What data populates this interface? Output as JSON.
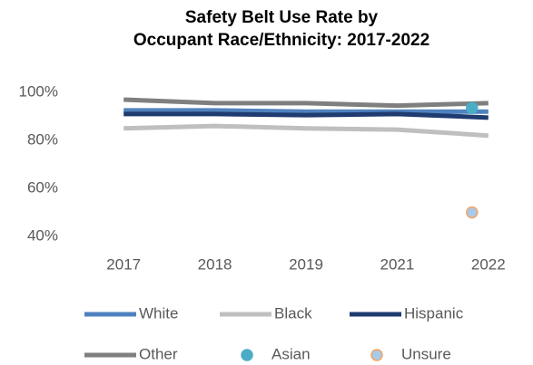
{
  "chart_data": {
    "type": "line",
    "title": [
      "Safety Belt Use Rate by",
      "Occupant Race/Ethnicity:  2017-2022"
    ],
    "categories": [
      "2017",
      "2018",
      "2019",
      "2021",
      "2022"
    ],
    "ylim": [
      40,
      100
    ],
    "yticks": [
      {
        "value": 40,
        "label": "40%"
      },
      {
        "value": 60,
        "label": "60%"
      },
      {
        "value": 80,
        "label": "80%"
      },
      {
        "value": 100,
        "label": "100%"
      }
    ],
    "grid": false,
    "legend": "bottom",
    "series": [
      {
        "name": "White",
        "color": "#4f81bd",
        "mode": "line",
        "values": [
          92.5,
          92.5,
          92,
          92,
          92
        ]
      },
      {
        "name": "Black",
        "color": "#bfbfbf",
        "mode": "line",
        "values": [
          85,
          86,
          85,
          84.5,
          82
        ]
      },
      {
        "name": "Hispanic",
        "color": "#1f3b70",
        "mode": "line",
        "values": [
          91,
          91,
          90.5,
          91,
          89.5
        ]
      },
      {
        "name": "Other",
        "color": "#7f7f7f",
        "mode": "line",
        "values": [
          97,
          95.5,
          95.5,
          94.5,
          95.5
        ]
      },
      {
        "name": "Asian",
        "color": "#4bacc6",
        "mode": "marker",
        "values": [
          null,
          null,
          null,
          null,
          93.5
        ]
      },
      {
        "name": "Unsure",
        "color": "#a9c9e8",
        "edge": "#f4a460",
        "mode": "marker",
        "values": [
          null,
          null,
          null,
          null,
          50
        ]
      }
    ]
  }
}
